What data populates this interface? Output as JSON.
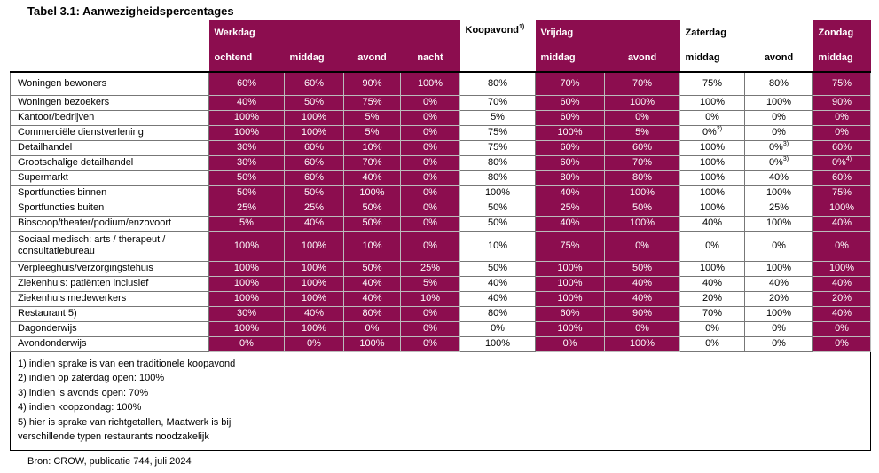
{
  "title": "Tabel 3.1: Aanwezigheidspercentages",
  "source": "Bron: CROW, publicatie 744, juli 2024",
  "colors": {
    "accent": "#8c0d4f",
    "text_on_accent": "#ffffff"
  },
  "header": {
    "groups": {
      "werkdag": "Werkdag",
      "koopavond": "Koopavond",
      "koopavond_sup": "1)",
      "vrijdag": "Vrijdag",
      "zaterdag": "Zaterdag",
      "zondag": "Zondag"
    },
    "sub": {
      "werkdag_ochtend": "ochtend",
      "werkdag_middag": "middag",
      "werkdag_avond": "avond",
      "werkdag_nacht": "nacht",
      "vrijdag_middag": "middag",
      "vrijdag_avond": "avond",
      "zaterdag_middag": "middag",
      "zaterdag_avond": "avond",
      "zondag_middag": "middag"
    }
  },
  "rows": [
    {
      "name": "Woningen bewoners",
      "vals": [
        "60%",
        "60%",
        "90%",
        "100%",
        "80%",
        "70%",
        "70%",
        "75%",
        "80%",
        "75%"
      ]
    },
    {
      "name": "Woningen bezoekers",
      "vals": [
        "40%",
        "50%",
        "75%",
        "0%",
        "70%",
        "60%",
        "100%",
        "100%",
        "100%",
        "90%"
      ]
    },
    {
      "name": "Kantoor/bedrijven",
      "vals": [
        "100%",
        "100%",
        "5%",
        "0%",
        "5%",
        "60%",
        "0%",
        "0%",
        "0%",
        "0%"
      ]
    },
    {
      "name": "Commerciële dienstverlening",
      "vals": [
        "100%",
        "100%",
        "5%",
        "0%",
        "75%",
        "100%",
        "5%",
        "0%",
        "0%",
        "0%"
      ],
      "sups": {
        "7": "2)"
      }
    },
    {
      "name": "Detailhandel",
      "vals": [
        "30%",
        "60%",
        "10%",
        "0%",
        "75%",
        "60%",
        "60%",
        "100%",
        "0%",
        "60%"
      ],
      "sups": {
        "8": "3)"
      }
    },
    {
      "name": "Grootschalige detailhandel",
      "vals": [
        "30%",
        "60%",
        "70%",
        "0%",
        "80%",
        "60%",
        "70%",
        "100%",
        "0%",
        "0%"
      ],
      "sups": {
        "8": "3)",
        "9": "4)"
      }
    },
    {
      "name": "Supermarkt",
      "vals": [
        "50%",
        "60%",
        "40%",
        "0%",
        "80%",
        "80%",
        "80%",
        "100%",
        "40%",
        "60%"
      ]
    },
    {
      "name": "Sportfuncties binnen",
      "vals": [
        "50%",
        "50%",
        "100%",
        "0%",
        "100%",
        "40%",
        "100%",
        "100%",
        "100%",
        "75%"
      ]
    },
    {
      "name": "Sportfuncties buiten",
      "vals": [
        "25%",
        "25%",
        "50%",
        "0%",
        "50%",
        "25%",
        "50%",
        "100%",
        "25%",
        "100%"
      ]
    },
    {
      "name": "Bioscoop/theater/podium/enzovoort",
      "vals": [
        "5%",
        "40%",
        "50%",
        "0%",
        "50%",
        "40%",
        "100%",
        "40%",
        "100%",
        "40%"
      ]
    },
    {
      "name": "Sociaal medisch: arts / therapeut / consultatiebureau",
      "vals": [
        "100%",
        "100%",
        "10%",
        "0%",
        "10%",
        "75%",
        "0%",
        "0%",
        "0%",
        "0%"
      ]
    },
    {
      "name": "Verpleeghuis/verzorgingstehuis",
      "vals": [
        "100%",
        "100%",
        "50%",
        "25%",
        "50%",
        "100%",
        "50%",
        "100%",
        "100%",
        "100%"
      ]
    },
    {
      "name": "Ziekenhuis: patiënten inclusief",
      "vals": [
        "100%",
        "100%",
        "40%",
        "5%",
        "40%",
        "100%",
        "40%",
        "40%",
        "40%",
        "40%"
      ]
    },
    {
      "name": "Ziekenhuis medewerkers",
      "vals": [
        "100%",
        "100%",
        "40%",
        "10%",
        "40%",
        "100%",
        "40%",
        "20%",
        "20%",
        "20%"
      ]
    },
    {
      "name": "Restaurant 5)",
      "vals": [
        "30%",
        "40%",
        "80%",
        "0%",
        "80%",
        "60%",
        "90%",
        "70%",
        "100%",
        "40%"
      ]
    },
    {
      "name": "Dagonderwijs",
      "vals": [
        "100%",
        "100%",
        "0%",
        "0%",
        "0%",
        "100%",
        "0%",
        "0%",
        "0%",
        "0%"
      ]
    },
    {
      "name": "Avondonderwijs",
      "vals": [
        "0%",
        "0%",
        "100%",
        "0%",
        "100%",
        "0%",
        "100%",
        "0%",
        "0%",
        "0%"
      ]
    }
  ],
  "notes": [
    "1) indien sprake is van een traditionele koopavond",
    "2) indien op zaterdag open: 100%",
    "3) indien ’s avonds open: 70%",
    "4) indien koopzondag: 100%",
    "5) hier is sprake van richtgetallen, Maatwerk is bij",
    "verschillende typen restaurants noodzakelijk"
  ]
}
